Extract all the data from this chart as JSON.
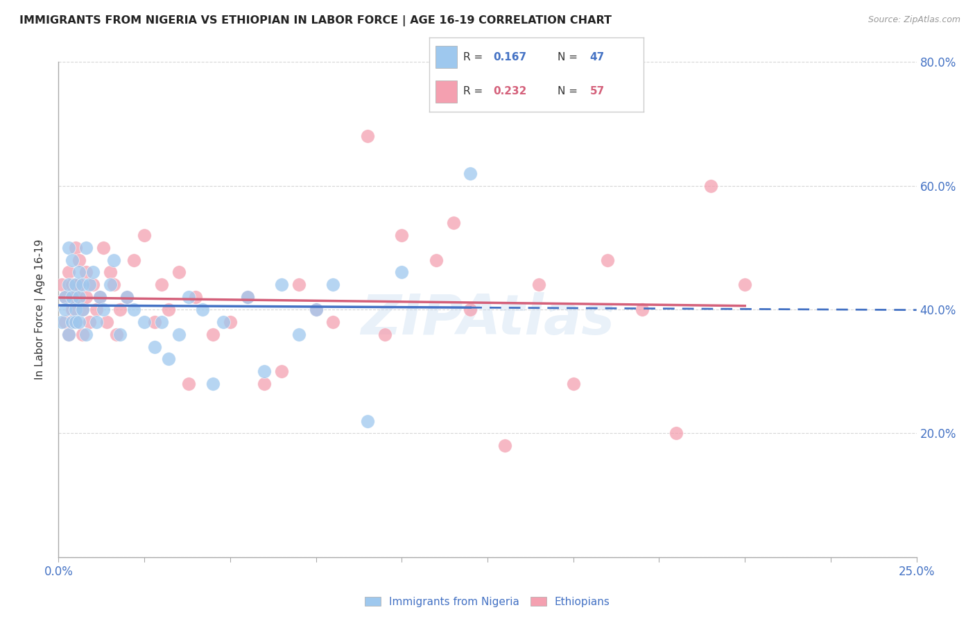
{
  "title": "IMMIGRANTS FROM NIGERIA VS ETHIOPIAN IN LABOR FORCE | AGE 16-19 CORRELATION CHART",
  "source_text": "Source: ZipAtlas.com",
  "ylabel": "In Labor Force | Age 16-19",
  "watermark": "ZIPAtlas",
  "xlim": [
    0.0,
    0.25
  ],
  "ylim": [
    0.0,
    0.8
  ],
  "xticks": [
    0.0,
    0.025,
    0.05,
    0.075,
    0.1,
    0.125,
    0.15,
    0.175,
    0.2,
    0.225,
    0.25
  ],
  "xticklabels_show": {
    "0.0": "0.0%",
    "0.25": "25.0%"
  },
  "yticks": [
    0.0,
    0.2,
    0.4,
    0.6,
    0.8
  ],
  "yticklabels": [
    "",
    "20.0%",
    "40.0%",
    "60.0%",
    "80.0%"
  ],
  "nigeria_color": "#9EC8EE",
  "ethiopia_color": "#F4A0B0",
  "nigeria_R": 0.167,
  "nigeria_N": 47,
  "ethiopia_R": 0.232,
  "ethiopia_N": 57,
  "nigeria_line_color": "#4472C4",
  "ethiopia_line_color": "#D4607A",
  "axis_label_color": "#4472C4",
  "tick_label_color": "#4472C4",
  "background_color": "#FFFFFF",
  "grid_color": "#CCCCCC",
  "nigeria_x": [
    0.001,
    0.002,
    0.002,
    0.003,
    0.003,
    0.003,
    0.004,
    0.004,
    0.004,
    0.005,
    0.005,
    0.005,
    0.006,
    0.006,
    0.006,
    0.007,
    0.007,
    0.008,
    0.008,
    0.009,
    0.01,
    0.011,
    0.012,
    0.013,
    0.015,
    0.016,
    0.018,
    0.02,
    0.022,
    0.025,
    0.028,
    0.03,
    0.032,
    0.035,
    0.038,
    0.042,
    0.045,
    0.048,
    0.055,
    0.06,
    0.065,
    0.07,
    0.075,
    0.08,
    0.09,
    0.1,
    0.12
  ],
  "nigeria_y": [
    0.38,
    0.42,
    0.4,
    0.44,
    0.5,
    0.36,
    0.42,
    0.48,
    0.38,
    0.44,
    0.4,
    0.38,
    0.46,
    0.42,
    0.38,
    0.44,
    0.4,
    0.5,
    0.36,
    0.44,
    0.46,
    0.38,
    0.42,
    0.4,
    0.44,
    0.48,
    0.36,
    0.42,
    0.4,
    0.38,
    0.34,
    0.38,
    0.32,
    0.36,
    0.42,
    0.4,
    0.28,
    0.38,
    0.42,
    0.3,
    0.44,
    0.36,
    0.4,
    0.44,
    0.22,
    0.46,
    0.62
  ],
  "ethiopia_x": [
    0.001,
    0.002,
    0.002,
    0.003,
    0.003,
    0.004,
    0.004,
    0.005,
    0.005,
    0.005,
    0.006,
    0.006,
    0.007,
    0.007,
    0.008,
    0.008,
    0.009,
    0.01,
    0.011,
    0.012,
    0.013,
    0.014,
    0.015,
    0.016,
    0.017,
    0.018,
    0.02,
    0.022,
    0.025,
    0.028,
    0.03,
    0.032,
    0.035,
    0.038,
    0.04,
    0.045,
    0.05,
    0.055,
    0.06,
    0.065,
    0.07,
    0.075,
    0.08,
    0.09,
    0.095,
    0.1,
    0.11,
    0.115,
    0.12,
    0.13,
    0.14,
    0.15,
    0.16,
    0.17,
    0.18,
    0.19,
    0.2
  ],
  "ethiopia_y": [
    0.44,
    0.42,
    0.38,
    0.46,
    0.36,
    0.4,
    0.44,
    0.5,
    0.42,
    0.38,
    0.44,
    0.48,
    0.4,
    0.36,
    0.42,
    0.46,
    0.38,
    0.44,
    0.4,
    0.42,
    0.5,
    0.38,
    0.46,
    0.44,
    0.36,
    0.4,
    0.42,
    0.48,
    0.52,
    0.38,
    0.44,
    0.4,
    0.46,
    0.28,
    0.42,
    0.36,
    0.38,
    0.42,
    0.28,
    0.3,
    0.44,
    0.4,
    0.38,
    0.68,
    0.36,
    0.52,
    0.48,
    0.54,
    0.4,
    0.18,
    0.44,
    0.28,
    0.48,
    0.4,
    0.2,
    0.6,
    0.44
  ]
}
